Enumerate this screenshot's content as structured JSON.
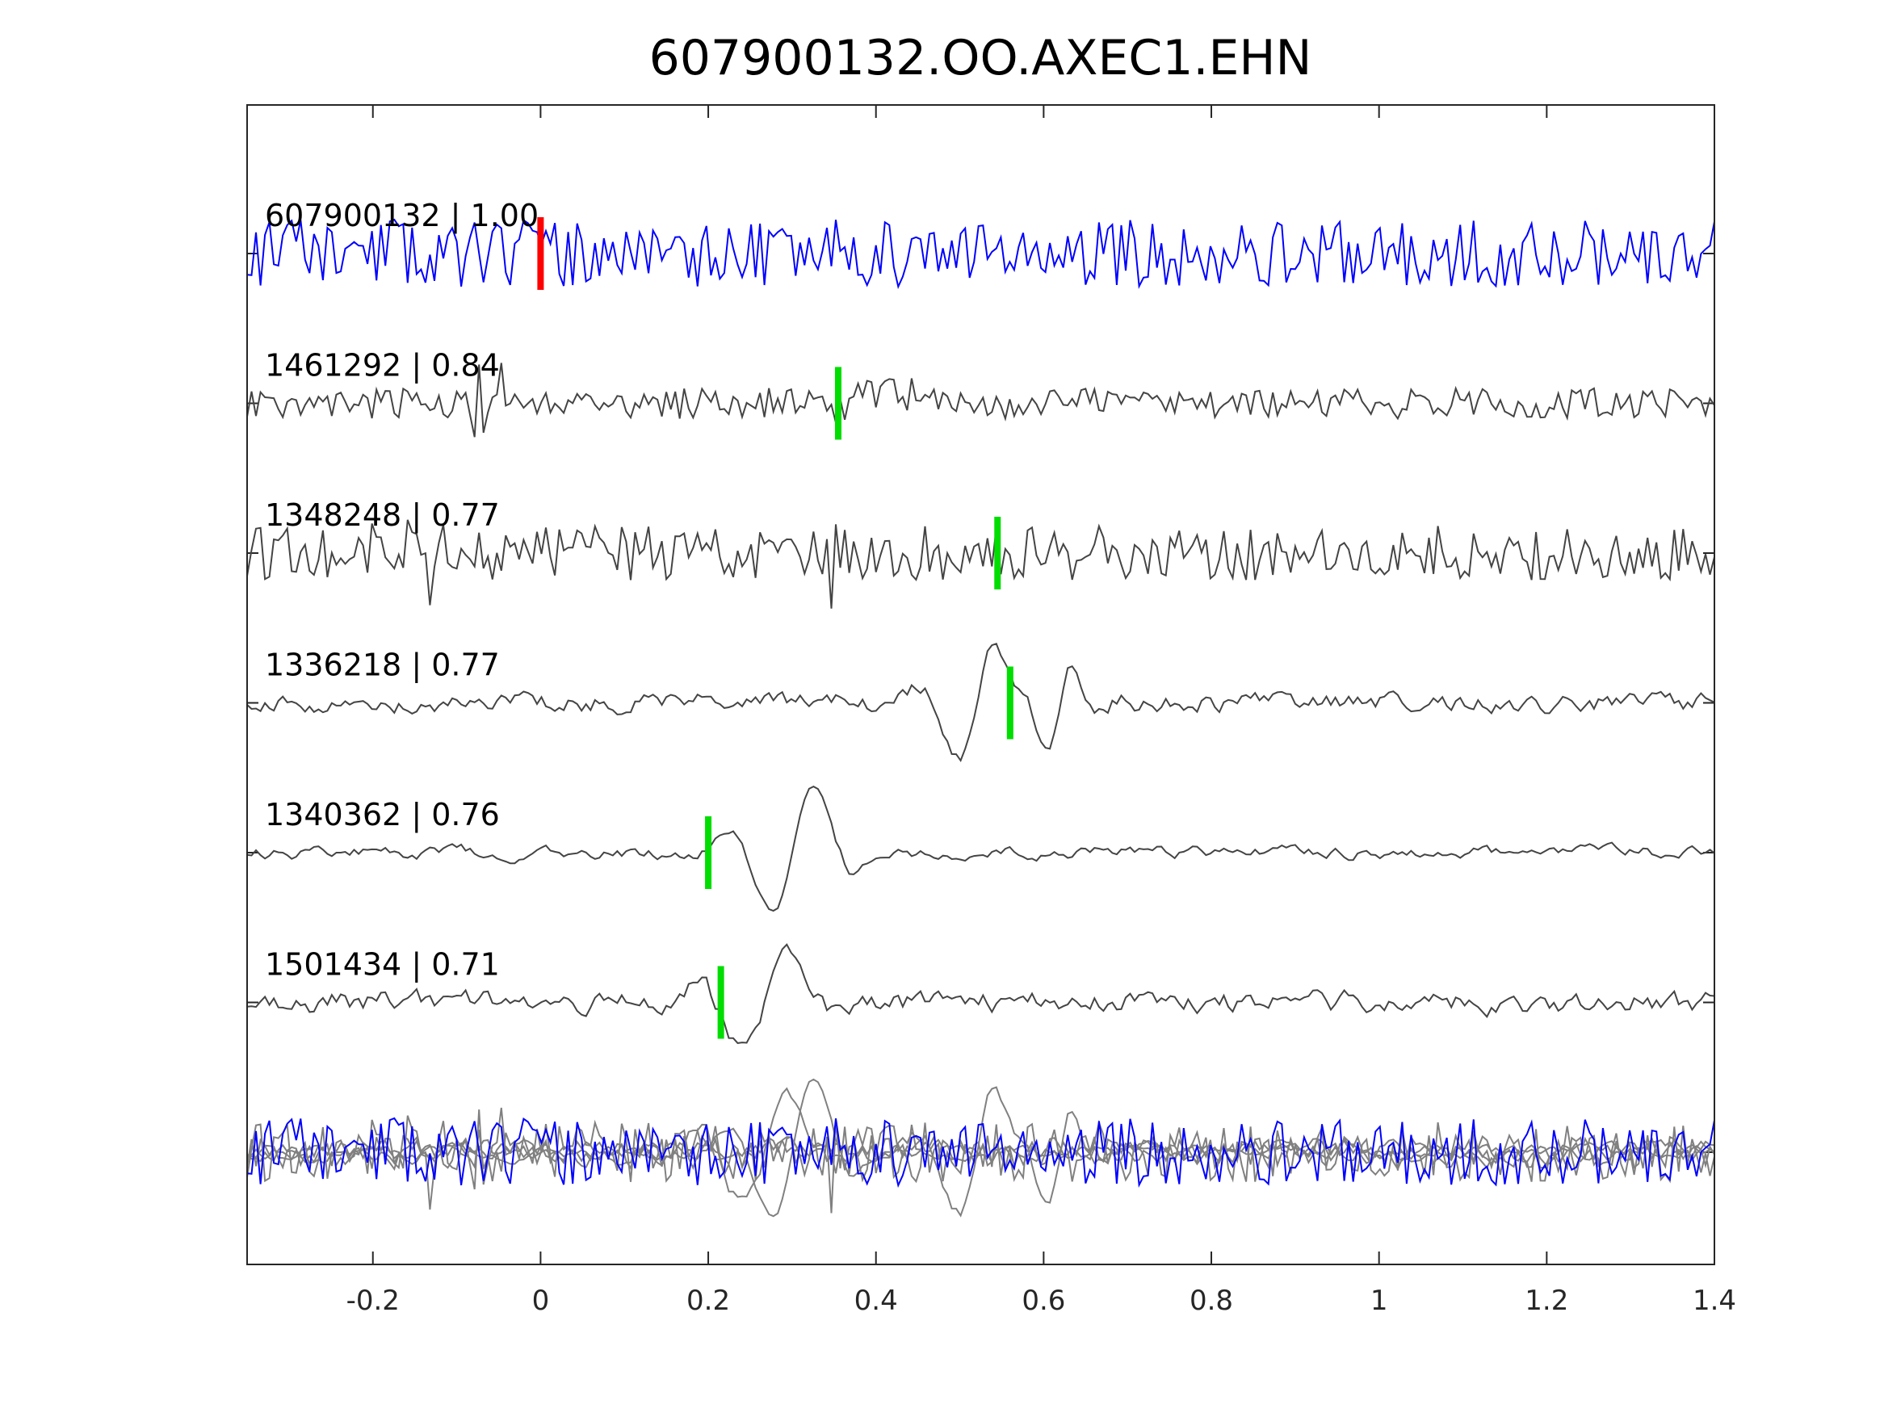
{
  "chart_data": {
    "type": "line",
    "title": "607900132.OO.AXEC1.EHN",
    "xlabel": "",
    "ylabel": "",
    "xlim": [
      -0.35,
      1.4
    ],
    "xticks": [
      -0.2,
      0,
      0.2,
      0.4,
      0.6,
      0.8,
      1,
      1.2,
      1.4
    ],
    "xtick_labels": [
      "-0.2",
      "0",
      "0.2",
      "0.4",
      "0.6",
      "0.8",
      "1",
      "1.2",
      "1.4"
    ],
    "grid": false,
    "series": [
      {
        "name": "607900132",
        "label": "607900132 | 1.00",
        "cc": 1.0,
        "pick": 0.0,
        "color": "#0000ff",
        "pick_color": "#ff0000",
        "burst": [],
        "lowpass": 0.0,
        "amp": 1.0,
        "seed": 11
      },
      {
        "name": "1461292",
        "label": "1461292 | 0.84",
        "cc": 0.84,
        "pick": 0.355,
        "color": "#444444",
        "pick_color": "#00dd00",
        "burst": [
          [
            -0.06,
            0.03,
            2.6
          ],
          [
            0.4,
            0.04,
            2.2
          ]
        ],
        "lowpass": 0.0,
        "amp": 0.45,
        "seed": 23
      },
      {
        "name": "1348248",
        "label": "1348248 | 0.77",
        "cc": 0.77,
        "pick": 0.545,
        "color": "#444444",
        "pick_color": "#00dd00",
        "burst": [
          [
            -0.15,
            0.05,
            1.5
          ],
          [
            0.34,
            0.02,
            1.6
          ]
        ],
        "lowpass": 0.0,
        "amp": 0.8,
        "seed": 37
      },
      {
        "name": "1336218",
        "label": "1336218 | 0.77",
        "cc": 0.77,
        "pick": 0.56,
        "color": "#444444",
        "pick_color": "#00dd00",
        "burst": [
          [
            0.52,
            0.06,
            5
          ],
          [
            0.62,
            0.04,
            4
          ]
        ],
        "lowpass": 0.6,
        "amp": 0.25,
        "seed": 41
      },
      {
        "name": "1340362",
        "label": "1340362 | 0.76",
        "cc": 0.76,
        "pick": 0.2,
        "color": "#444444",
        "pick_color": "#00dd00",
        "burst": [
          [
            0.3,
            0.07,
            6
          ]
        ],
        "lowpass": 0.7,
        "amp": 0.2,
        "seed": 53
      },
      {
        "name": "1501434",
        "label": "1501434 | 0.71",
        "cc": 0.71,
        "pick": 0.215,
        "color": "#444444",
        "pick_color": "#00dd00",
        "burst": [
          [
            0.27,
            0.08,
            5
          ]
        ],
        "lowpass": 0.6,
        "amp": 0.3,
        "seed": 67
      }
    ],
    "stack": {
      "name": "overlay",
      "color_ref": "#0000ff",
      "color_others": "#808080"
    }
  }
}
